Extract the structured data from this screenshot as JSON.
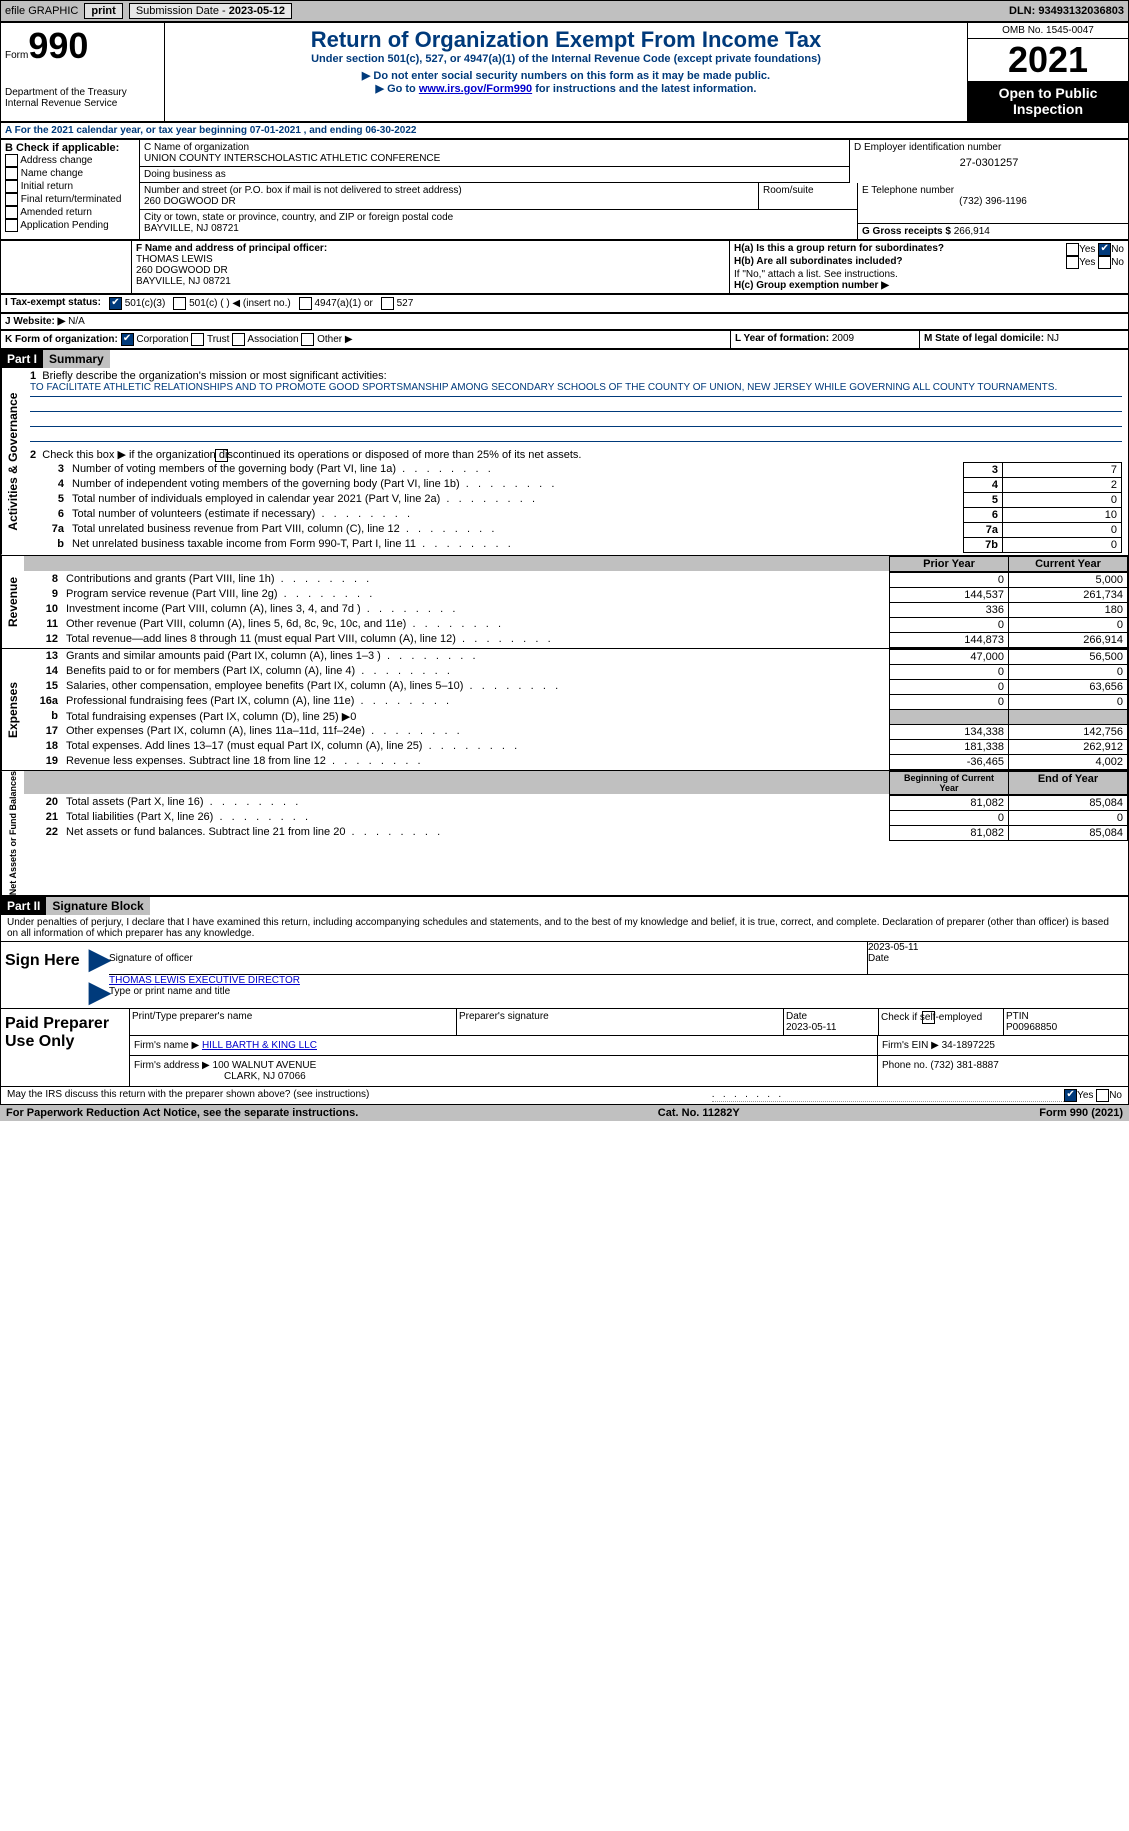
{
  "topbar": {
    "efile": "efile GRAPHIC",
    "print_btn": "print",
    "submission_label": "Submission Date - ",
    "submission_date": "2023-05-12",
    "dln_label": "DLN: ",
    "dln": "93493132036803"
  },
  "header": {
    "form_label": "Form",
    "form_number": "990",
    "dept": "Department of the Treasury\nInternal Revenue Service",
    "title": "Return of Organization Exempt From Income Tax",
    "subtitle": "Under section 501(c), 527, or 4947(a)(1) of the Internal Revenue Code (except private foundations)",
    "note1": "▶ Do not enter social security numbers on this form as it may be made public.",
    "note2_pre": "▶ Go to ",
    "note2_link": "www.irs.gov/Form990",
    "note2_post": " for instructions and the latest information.",
    "omb": "OMB No. 1545-0047",
    "year": "2021",
    "inspection": "Open to Public Inspection"
  },
  "secA": {
    "line": "A For the 2021 calendar year, or tax year beginning 07-01-2021    , and ending 06-30-2022",
    "b_label": "B Check if applicable:",
    "b_opts": [
      "Address change",
      "Name change",
      "Initial return",
      "Final return/terminated",
      "Amended return",
      "Application Pending"
    ],
    "c_label": "C Name of organization",
    "c_name": "UNION COUNTY INTERSCHOLASTIC ATHLETIC CONFERENCE",
    "dba": "Doing business as",
    "addr_label": "Number and street (or P.O. box if mail is not delivered to street address)",
    "room_label": "Room/suite",
    "addr": "260 DOGWOOD DR",
    "city_label": "City or town, state or province, country, and ZIP or foreign postal code",
    "city": "BAYVILLE, NJ  08721",
    "d_label": "D Employer identification number",
    "d_val": "27-0301257",
    "e_label": "E Telephone number",
    "e_val": "(732) 396-1196",
    "g_label": "G Gross receipts $",
    "g_val": "266,914",
    "f_label": "F  Name and address of principal officer:",
    "f_name": "THOMAS LEWIS",
    "f_addr1": "260 DOGWOOD DR",
    "f_addr2": "BAYVILLE, NJ  08721",
    "ha": "H(a)  Is this a group return for subordinates?",
    "hb": "H(b)  Are all subordinates included?",
    "hb_note": "If \"No,\" attach a list. See instructions.",
    "hc": "H(c)  Group exemption number ▶",
    "yes": "Yes",
    "no": "No",
    "i_label": "I    Tax-exempt status:",
    "i_1": "501(c)(3)",
    "i_2": "501(c) (  ) ◀ (insert no.)",
    "i_3": "4947(a)(1) or",
    "i_4": "527",
    "j_label": "J   Website: ▶",
    "j_val": "N/A",
    "k_label": "K Form of organization:",
    "k_opts": [
      "Corporation",
      "Trust",
      "Association",
      "Other ▶"
    ],
    "l_label": "L Year of formation:",
    "l_val": "2009",
    "m_label": "M State of legal domicile:",
    "m_val": "NJ"
  },
  "part1": {
    "hdr": "Part I",
    "title": "Summary",
    "q1": "Briefly describe the organization's mission or most significant activities:",
    "mission": "TO FACILITATE ATHLETIC RELATIONSHIPS AND TO PROMOTE GOOD SPORTSMANSHIP AMONG SECONDARY SCHOOLS OF THE COUNTY OF UNION, NEW JERSEY WHILE GOVERNING ALL COUNTY TOURNAMENTS.",
    "q2": "Check this box ▶         if the organization discontinued its operations or disposed of more than 25% of its net assets.",
    "lines": [
      {
        "n": "3",
        "txt": "Number of voting members of the governing body (Part VI, line 1a)",
        "box": "3",
        "val": "7"
      },
      {
        "n": "4",
        "txt": "Number of independent voting members of the governing body (Part VI, line 1b)",
        "box": "4",
        "val": "2"
      },
      {
        "n": "5",
        "txt": "Total number of individuals employed in calendar year 2021 (Part V, line 2a)",
        "box": "5",
        "val": "0"
      },
      {
        "n": "6",
        "txt": "Total number of volunteers (estimate if necessary)",
        "box": "6",
        "val": "10"
      },
      {
        "n": "7a",
        "txt": "Total unrelated business revenue from Part VIII, column (C), line 12",
        "box": "7a",
        "val": "0"
      },
      {
        "n": "b",
        "txt": "Net unrelated business taxable income from Form 990-T, Part I, line 11",
        "box": "7b",
        "val": "0"
      }
    ],
    "prior_hdr": "Prior Year",
    "curr_hdr": "Current Year",
    "rev_lines": [
      {
        "n": "8",
        "txt": "Contributions and grants (Part VIII, line 1h)",
        "p": "0",
        "c": "5,000"
      },
      {
        "n": "9",
        "txt": "Program service revenue (Part VIII, line 2g)",
        "p": "144,537",
        "c": "261,734"
      },
      {
        "n": "10",
        "txt": "Investment income (Part VIII, column (A), lines 3, 4, and 7d )",
        "p": "336",
        "c": "180"
      },
      {
        "n": "11",
        "txt": "Other revenue (Part VIII, column (A), lines 5, 6d, 8c, 9c, 10c, and 11e)",
        "p": "0",
        "c": "0"
      },
      {
        "n": "12",
        "txt": "Total revenue—add lines 8 through 11 (must equal Part VIII, column (A), line 12)",
        "p": "144,873",
        "c": "266,914"
      }
    ],
    "exp_lines": [
      {
        "n": "13",
        "txt": "Grants and similar amounts paid (Part IX, column (A), lines 1–3 )",
        "p": "47,000",
        "c": "56,500"
      },
      {
        "n": "14",
        "txt": "Benefits paid to or for members (Part IX, column (A), line 4)",
        "p": "0",
        "c": "0"
      },
      {
        "n": "15",
        "txt": "Salaries, other compensation, employee benefits (Part IX, column (A), lines 5–10)",
        "p": "0",
        "c": "63,656"
      },
      {
        "n": "16a",
        "txt": "Professional fundraising fees (Part IX, column (A), line 11e)",
        "p": "0",
        "c": "0"
      },
      {
        "n": "b",
        "txt": "Total fundraising expenses (Part IX, column (D), line 25) ▶0",
        "p": "",
        "c": "",
        "grey": true
      },
      {
        "n": "17",
        "txt": "Other expenses (Part IX, column (A), lines 11a–11d, 11f–24e)",
        "p": "134,338",
        "c": "142,756"
      },
      {
        "n": "18",
        "txt": "Total expenses. Add lines 13–17 (must equal Part IX, column (A), line 25)",
        "p": "181,338",
        "c": "262,912"
      },
      {
        "n": "19",
        "txt": "Revenue less expenses. Subtract line 18 from line 12",
        "p": "-36,465",
        "c": "4,002"
      }
    ],
    "beg_hdr": "Beginning of Current Year",
    "end_hdr": "End of Year",
    "net_lines": [
      {
        "n": "20",
        "txt": "Total assets (Part X, line 16)",
        "p": "81,082",
        "c": "85,084"
      },
      {
        "n": "21",
        "txt": "Total liabilities (Part X, line 26)",
        "p": "0",
        "c": "0"
      },
      {
        "n": "22",
        "txt": "Net assets or fund balances. Subtract line 21 from line 20",
        "p": "81,082",
        "c": "85,084"
      }
    ],
    "side_labels": {
      "ag": "Activities & Governance",
      "rev": "Revenue",
      "exp": "Expenses",
      "net": "Net Assets or Fund Balances"
    }
  },
  "part2": {
    "hdr": "Part II",
    "title": "Signature Block",
    "penalties": "Under penalties of perjury, I declare that I have examined this return, including accompanying schedules and statements, and to the best of my knowledge and belief, it is true, correct, and complete. Declaration of preparer (other than officer) is based on all information of which preparer has any knowledge.",
    "sign_here": "Sign Here",
    "sig_officer": "Signature of officer",
    "sig_date": "2023-05-11",
    "date_label": "Date",
    "name_title": "THOMAS LEWIS  EXECUTIVE DIRECTOR",
    "type_label": "Type or print name and title",
    "paid_hdr": "Paid Preparer Use Only",
    "prep_name_label": "Print/Type preparer's name",
    "prep_sig_label": "Preparer's signature",
    "prep_date_label": "Date",
    "prep_date": "2023-05-11",
    "check_if": "Check         if self-employed",
    "ptin_label": "PTIN",
    "ptin": "P00968850",
    "firm_name_label": "Firm's name      ▶",
    "firm_name": "HILL BARTH & KING LLC",
    "firm_ein_label": "Firm's EIN ▶",
    "firm_ein": "34-1897225",
    "firm_addr_label": "Firm's address ▶",
    "firm_addr1": "100 WALNUT AVENUE",
    "firm_addr2": "CLARK, NJ  07066",
    "phone_label": "Phone no.",
    "phone": "(732) 381-8887",
    "discuss": "May the IRS discuss this return with the preparer shown above? (see instructions)"
  },
  "footer": {
    "left": "For Paperwork Reduction Act Notice, see the separate instructions.",
    "mid": "Cat. No. 11282Y",
    "right": "Form 990 (2021)"
  }
}
